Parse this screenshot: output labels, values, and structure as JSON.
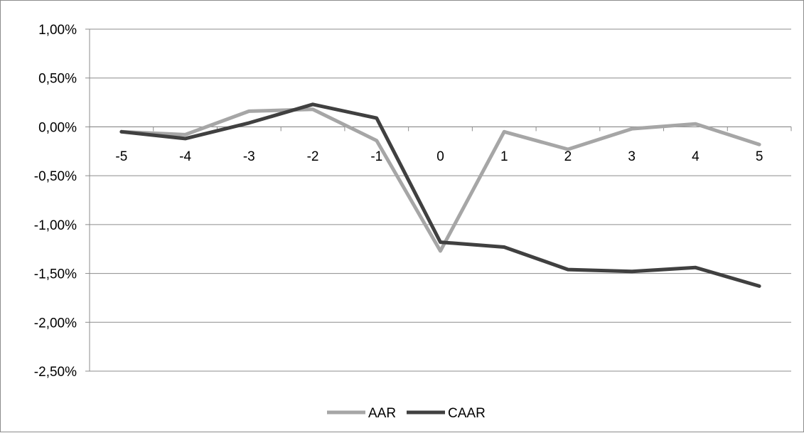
{
  "chart_data": {
    "type": "line",
    "title": "",
    "xlabel": "",
    "ylabel": "",
    "categories": [
      "-5",
      "-4",
      "-3",
      "-2",
      "-1",
      "0",
      "1",
      "2",
      "3",
      "4",
      "5"
    ],
    "y_ticks": [
      1.0,
      0.5,
      0.0,
      -0.5,
      -1.0,
      -1.5,
      -2.0,
      -2.5
    ],
    "y_tick_labels": [
      "1,00%",
      "0,50%",
      "0,00%",
      "-0,50%",
      "-1,00%",
      "-1,50%",
      "-2,00%",
      "-2,50%"
    ],
    "ylim": [
      -2.5,
      1.0
    ],
    "y_unit": "%",
    "grid": "horizontal",
    "legend_position": "bottom",
    "series": [
      {
        "name": "AAR",
        "color": "#a6a6a6",
        "values": [
          -0.05,
          -0.08,
          0.16,
          0.18,
          -0.14,
          -1.27,
          -0.05,
          -0.23,
          -0.02,
          0.03,
          -0.18
        ]
      },
      {
        "name": "CAAR",
        "color": "#404040",
        "values": [
          -0.05,
          -0.12,
          0.04,
          0.23,
          0.09,
          -1.18,
          -1.23,
          -1.46,
          -1.48,
          -1.44,
          -1.63
        ]
      }
    ]
  }
}
